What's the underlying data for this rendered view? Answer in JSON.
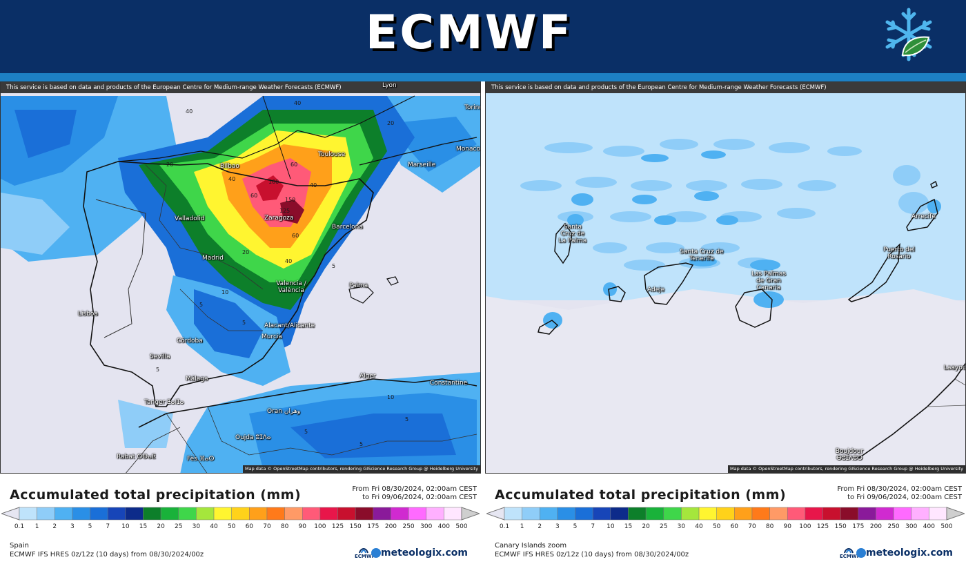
{
  "header": {
    "title": "ECMWF",
    "logo_icon": "snowflake-leaf-icon"
  },
  "panels": [
    {
      "id": "spain",
      "notice": "This service is based on data and products of the European Centre for Medium-range Weather Forecasts (ECMWF)",
      "attribution": "Map data © OpenStreetMap contributors, rendering GIScience Research Group @ Heidelberg University",
      "places": [
        "Lyon",
        "Torino",
        "Monaco",
        "Toulouse",
        "Marseille",
        "Bilbao",
        "Valladolid",
        "Zaragoza",
        "Barcelona",
        "Madrid",
        "Valencia / València",
        "Palma",
        "Lisboa",
        "Alacant/Alicante",
        "Murcia",
        "Córdoba",
        "Sevilla",
        "Málaga",
        "Tanger ⵟⴰⵏⵊⴰ",
        "Alger",
        "Constantine",
        "Oran وهران",
        "Oujda ⵓⵊⴷⴰ",
        "Fès ⴼⴰⵙ",
        "Rabat ⵔⴱⴰⵟ"
      ],
      "contour_numbers": [
        "40",
        "40",
        "20",
        "20",
        "40",
        "60",
        "60",
        "40",
        "100",
        "125",
        "150",
        "60",
        "20",
        "40",
        "10",
        "5",
        "5",
        "5",
        "5",
        "5",
        "5",
        "10",
        "5"
      ],
      "legend_title": "Accumulated total precipitation (mm)",
      "range_from": "From Fri 08/30/2024, 02:00am CEST",
      "range_to": "to Fri 09/06/2024, 02:00am CEST",
      "region_name": "Spain",
      "model_info": "ECMWF IFS HRES 0z/12z (10 days) from 08/30/2024/00z"
    },
    {
      "id": "canary",
      "notice": "This service is based on data and products of the European Centre for Medium-range Weather Forecasts (ECMWF)",
      "attribution": "Map data © OpenStreetMap contributors, rendering GIScience Research Group @ Heidelberg University",
      "places": [
        "Santa Cruz de La Palma",
        "Santa Cruz de Tenerife",
        "Adeje",
        "Las Palmas de Gran Canaria",
        "Puerto del Rosario",
        "Arrecife",
        "Laayoune",
        "Boujdour ⴱⵓⵊⴷⵓⵔ"
      ],
      "contour_numbers": [],
      "legend_title": "Accumulated total precipitation (mm)",
      "range_from": "From Fri 08/30/2024, 02:00am CEST",
      "range_to": "to Fri 09/06/2024, 02:00am CEST",
      "region_name": "Canary Islands zoom",
      "model_info": "ECMWF IFS HRES 0z/12z (10 days) from 08/30/2024/00z"
    }
  ],
  "legend": {
    "ticks": [
      "0.1",
      "1",
      "2",
      "3",
      "5",
      "7",
      "10",
      "15",
      "20",
      "25",
      "30",
      "40",
      "50",
      "60",
      "70",
      "80",
      "90",
      "100",
      "125",
      "150",
      "175",
      "200",
      "250",
      "300",
      "400",
      "500"
    ],
    "colors": [
      "#e6e6f2",
      "#bfe3fb",
      "#8fcdf8",
      "#4fb1f2",
      "#2a8fe6",
      "#1a6fd8",
      "#1745b8",
      "#0d2b8a",
      "#0d7f2a",
      "#19b23a",
      "#3fd64a",
      "#a5e63c",
      "#fff530",
      "#ffd21a",
      "#ffa01a",
      "#ff7a1a",
      "#ff9a66",
      "#ff5a78",
      "#e8164a",
      "#c8102e",
      "#8a0d2a",
      "#8a1a9a",
      "#d02ad0",
      "#ff6aff",
      "#ffb0ff",
      "#ffe6ff",
      "#cfcfcf"
    ]
  },
  "brand": {
    "ecmwf_small": "ECMWF",
    "meteologix": "meteologix.com"
  }
}
